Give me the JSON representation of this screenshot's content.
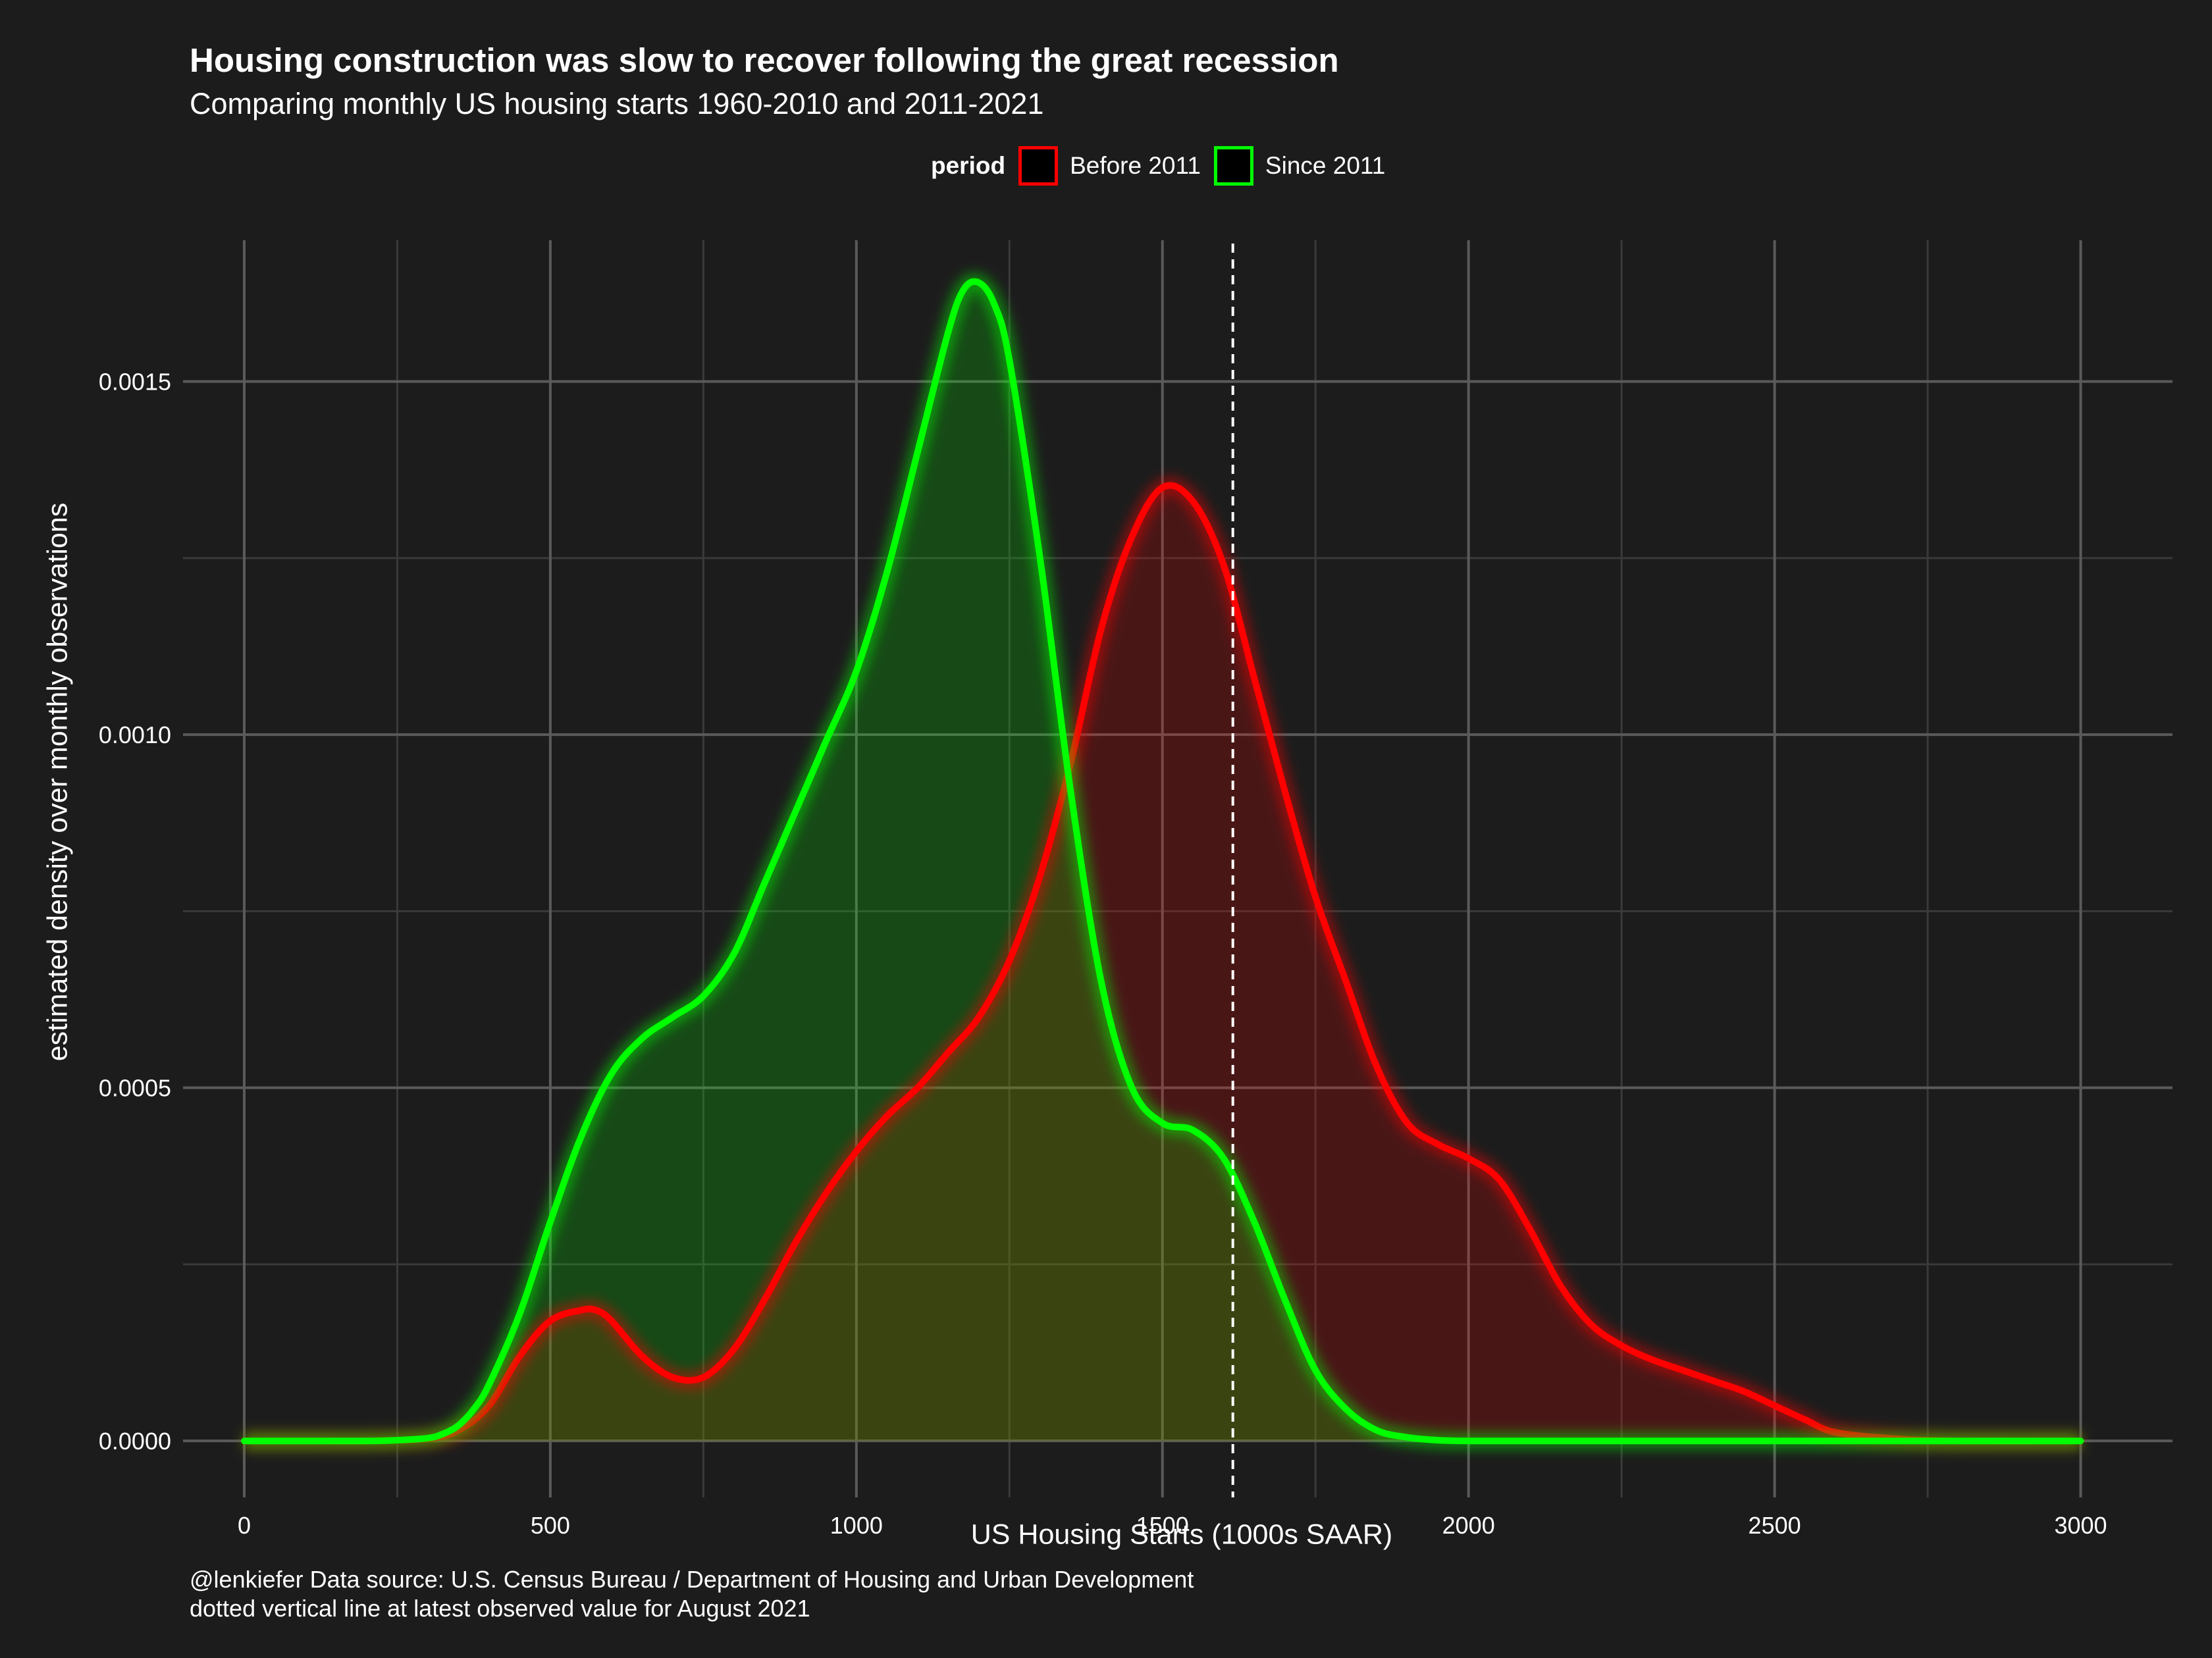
{
  "title": "Housing construction was slow to recover following the great recession",
  "subtitle": "Comparing monthly US housing starts 1960-2010 and 2011-2021",
  "legend": {
    "title": "period",
    "items": [
      {
        "label": "Before 2011",
        "color": "#ff0000"
      },
      {
        "label": "Since 2011",
        "color": "#00ff00"
      }
    ]
  },
  "caption": {
    "line1": "@lenkiefer Data source: U.S. Census Bureau / Department of Housing and Urban Development",
    "line2": "dotted vertical line at latest observed value for August 2021"
  },
  "colors": {
    "background": "#1c1c1c",
    "grid_major": "#5a5a5a",
    "grid_minor": "#3a3a3a",
    "before_2011": "#ff0000",
    "since_2011": "#00ff00",
    "baseline_glow": "#ff9900",
    "reference_line": "#ffffff"
  },
  "chart_data": {
    "type": "area",
    "title": "Housing construction was slow to recover following the great recession",
    "xlabel": "US Housing Starts (1000s SAAR)",
    "ylabel": "estimated density over monthly observations",
    "xlim": [
      -100,
      3150
    ],
    "ylim": [
      -8e-05,
      0.0017
    ],
    "x_ticks": [
      0,
      500,
      1000,
      1500,
      2000,
      2500,
      3000
    ],
    "x_tick_labels": [
      "0",
      "500",
      "1000",
      "1500",
      "2000",
      "2500",
      "3000"
    ],
    "y_ticks": [
      0,
      0.0005,
      0.001,
      0.0015
    ],
    "y_tick_labels": [
      "0.0000",
      "0.0005",
      "0.0010",
      "0.0015"
    ],
    "grid": true,
    "legend_position": "top",
    "reference_line": {
      "x": 1615,
      "style": "dashed",
      "label": "latest observed value for August 2021"
    },
    "series": [
      {
        "name": "Before 2011",
        "color": "#ff0000",
        "x": [
          0,
          100,
          200,
          300,
          350,
          400,
          450,
          500,
          550,
          575,
          600,
          650,
          700,
          750,
          800,
          850,
          900,
          950,
          1000,
          1050,
          1100,
          1150,
          1200,
          1250,
          1300,
          1350,
          1400,
          1450,
          1500,
          1550,
          1600,
          1650,
          1700,
          1750,
          1800,
          1850,
          1900,
          1950,
          2000,
          2050,
          2100,
          2150,
          2200,
          2250,
          2300,
          2350,
          2400,
          2450,
          2500,
          2550,
          2600,
          2700,
          2800,
          3000
        ],
        "values": [
          0,
          0,
          0,
          3e-06,
          1.5e-05,
          5e-05,
          0.00012,
          0.00017,
          0.000185,
          0.000185,
          0.00017,
          0.00012,
          9e-05,
          9e-05,
          0.00013,
          0.0002,
          0.00028,
          0.00035,
          0.00041,
          0.00046,
          0.0005,
          0.00055,
          0.0006,
          0.00068,
          0.0008,
          0.00096,
          0.00115,
          0.00128,
          0.00135,
          0.00133,
          0.00124,
          0.00108,
          0.00092,
          0.00077,
          0.00065,
          0.00053,
          0.00045,
          0.00042,
          0.0004,
          0.00037,
          0.0003,
          0.00022,
          0.000165,
          0.000135,
          0.000115,
          0.0001,
          8.5e-05,
          7e-05,
          5e-05,
          3e-05,
          1.2e-05,
          3e-06,
          0,
          0
        ]
      },
      {
        "name": "Since 2011",
        "color": "#00ff00",
        "x": [
          0,
          100,
          200,
          250,
          300,
          325,
          350,
          375,
          400,
          450,
          500,
          550,
          600,
          650,
          700,
          750,
          800,
          850,
          900,
          950,
          1000,
          1050,
          1100,
          1150,
          1175,
          1200,
          1225,
          1250,
          1300,
          1350,
          1400,
          1450,
          1500,
          1550,
          1600,
          1650,
          1700,
          1750,
          1800,
          1850,
          1900,
          1950,
          2000,
          2100,
          2200,
          2500,
          3000
        ],
        "values": [
          0,
          0,
          0,
          1e-06,
          4e-06,
          1e-05,
          2.2e-05,
          4.5e-05,
          8e-05,
          0.00018,
          0.00031,
          0.00043,
          0.00052,
          0.00057,
          0.0006,
          0.00063,
          0.00069,
          0.00079,
          0.00089,
          0.00099,
          0.00109,
          0.00123,
          0.0014,
          0.00157,
          0.00163,
          0.00164,
          0.00161,
          0.00153,
          0.00125,
          0.00092,
          0.00065,
          0.0005,
          0.00045,
          0.00044,
          0.0004,
          0.00031,
          0.0002,
          0.0001,
          4.5e-05,
          1.5e-05,
          5e-06,
          1e-06,
          0,
          0,
          0,
          0,
          0
        ]
      }
    ]
  }
}
